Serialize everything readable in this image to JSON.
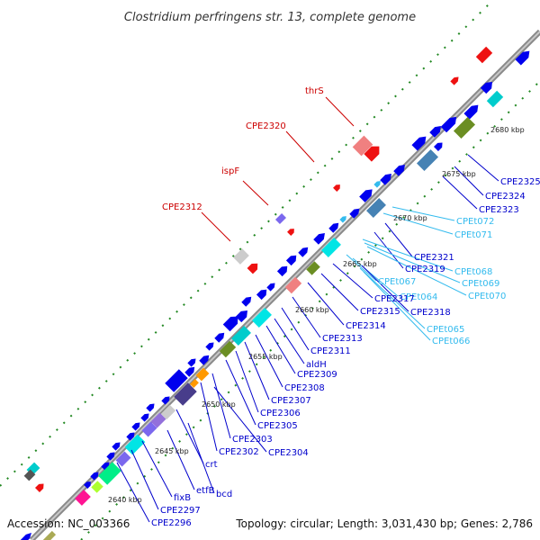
{
  "title": "Clostridium perfringens str. 13, complete genome",
  "footer": {
    "accession": "Accession: NC_003366",
    "summary": "Topology: circular; Length: 3,031,430 bp; Genes: 2,786"
  },
  "colors": {
    "forward": "#0000ee",
    "reverse_label": "#cc0000",
    "trna_label": "#33bbee",
    "backbone": "#aaaaaa",
    "tick": "#228822"
  },
  "ticks": [
    {
      "label": "2640 kbp"
    },
    {
      "label": "2645 kbp"
    },
    {
      "label": "2650 kbp"
    },
    {
      "label": "2655 kbp"
    },
    {
      "label": "2660 kbp"
    },
    {
      "label": "2665 kbp"
    },
    {
      "label": "2670 kbp"
    },
    {
      "label": "2675 kbp"
    },
    {
      "label": "2680 kbp"
    }
  ],
  "reverse_labels": [
    {
      "text": "thrS"
    },
    {
      "text": "CPE2320"
    },
    {
      "text": "ispF"
    },
    {
      "text": "CPE2312"
    }
  ],
  "forward_labels": [
    {
      "text": "CPE2325"
    },
    {
      "text": "CPE2324"
    },
    {
      "text": "CPE2323"
    },
    {
      "text": "CPEt072"
    },
    {
      "text": "CPEt071"
    },
    {
      "text": "CPE2321"
    },
    {
      "text": "CPE2319"
    },
    {
      "text": "CPEt068"
    },
    {
      "text": "CPEt069"
    },
    {
      "text": "CPEt070"
    },
    {
      "text": "CPEt067"
    },
    {
      "text": "CPEt064"
    },
    {
      "text": "CPE2317"
    },
    {
      "text": "CPE2318"
    },
    {
      "text": "CPE2315"
    },
    {
      "text": "CPE2314"
    },
    {
      "text": "CPEt065"
    },
    {
      "text": "CPEt066"
    },
    {
      "text": "CPE2313"
    },
    {
      "text": "CPE2311"
    },
    {
      "text": "aldH"
    },
    {
      "text": "CPE2309"
    },
    {
      "text": "CPE2308"
    },
    {
      "text": "CPE2307"
    },
    {
      "text": "CPE2306"
    },
    {
      "text": "CPE2305"
    },
    {
      "text": "CPE2303"
    },
    {
      "text": "CPE2302"
    },
    {
      "text": "CPE2304"
    },
    {
      "text": "crt"
    },
    {
      "text": "bcd"
    },
    {
      "text": "etfB"
    },
    {
      "text": "fixB"
    },
    {
      "text": "CPE2297"
    },
    {
      "text": "CPE2296"
    }
  ]
}
